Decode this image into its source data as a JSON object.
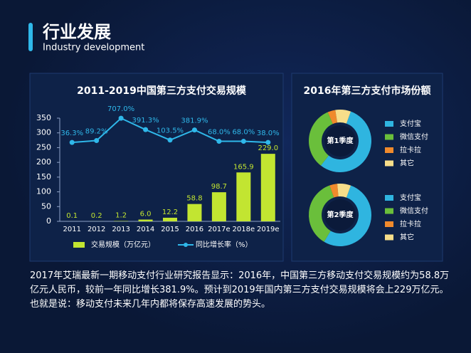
{
  "header": {
    "title": "行业发展",
    "subtitle": "Industry development"
  },
  "text": "2017年艾瑞最新一期移动支付行业研究报告显示：2016年，中国第三方移动支付交易规模约为58.8万亿元人民币，较前一年同比增长381.9%。预计到2019年国内第三方支付交易规模将会上229万亿元。也就是说：移动支付未来几年内都将保存高速发展的势头。",
  "chart_data": [
    {
      "type": "bar",
      "title": "2011-2019中国第三方支付交易规模",
      "categories": [
        "2011",
        "2012",
        "2013",
        "2014",
        "2015",
        "2016",
        "2017e",
        "2018e",
        "2019e"
      ],
      "ylim": [
        0,
        350
      ],
      "yticks": [
        0,
        50,
        100,
        150,
        200,
        250,
        300,
        350
      ],
      "y2lim": [
        -2150,
        710
      ],
      "series": [
        {
          "name": "交易规模（万亿元）",
          "type": "bar",
          "color": "#c2e531",
          "values": [
            0.1,
            0.2,
            1.2,
            6.0,
            12.2,
            58.8,
            98.7,
            165.9,
            229.0
          ],
          "value_labels": [
            "0.1",
            "0.2",
            "1.2",
            "6.0",
            "12.2",
            "58.8",
            "98.7",
            "165.9",
            "229.0"
          ]
        },
        {
          "name": "同比增长率（%）",
          "type": "line",
          "axis": "y2",
          "color": "#2fb8ea",
          "values": [
            36.3,
            89.2,
            707.0,
            391.3,
            103.5,
            381.9,
            68.0,
            68.0,
            38.0
          ],
          "value_labels": [
            "36.3%",
            "89.2%",
            "707.0%",
            "391.3%",
            "103.5%",
            "381.9%",
            "68.0%",
            "68.0%",
            "38.0%"
          ]
        }
      ]
    },
    {
      "type": "pie",
      "title": "2016年第三方支付市场份额",
      "categories": [
        "支付宝",
        "微信支付",
        "拉卡拉",
        "其它"
      ],
      "colors": [
        "#2fb5e0",
        "#6abf3b",
        "#f08a2c",
        "#f7de8a"
      ],
      "series": [
        {
          "name": "第1季度",
          "values": [
            55,
            33,
            4,
            8
          ]
        },
        {
          "name": "第2季度",
          "values": [
            53,
            36,
            4,
            7
          ]
        }
      ]
    }
  ]
}
